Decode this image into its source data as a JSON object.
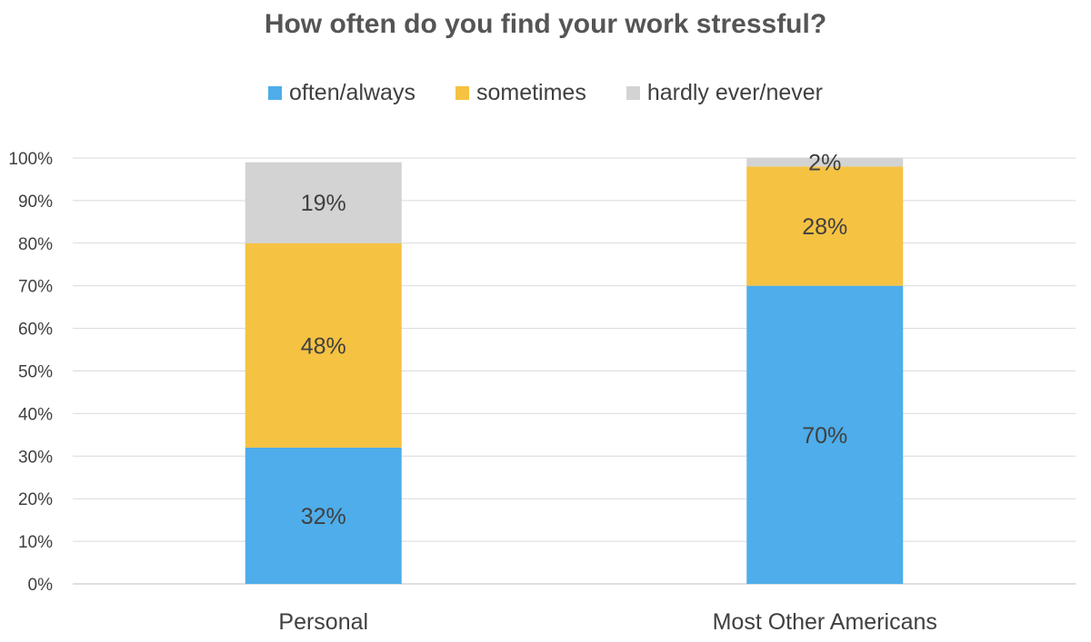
{
  "chart_data": {
    "type": "bar",
    "stacked": true,
    "title": "How often do you find your work stressful?",
    "xlabel": "",
    "ylabel": "",
    "categories": [
      "Personal",
      "Most Other Americans"
    ],
    "series": [
      {
        "name": "often/always",
        "values": [
          32,
          70
        ],
        "labels": [
          "32%",
          "70%"
        ],
        "color": "#4EADEA"
      },
      {
        "name": "sometimes",
        "values": [
          48,
          28
        ],
        "labels": [
          "48%",
          "28%"
        ],
        "color": "#F5C242"
      },
      {
        "name": "hardly ever/never",
        "values": [
          19,
          2
        ],
        "labels": [
          "19%",
          "2%"
        ],
        "color": "#D3D3D3"
      }
    ],
    "ylim": [
      0,
      100
    ],
    "yticks": [
      "0%",
      "10%",
      "20%",
      "30%",
      "40%",
      "50%",
      "60%",
      "70%",
      "80%",
      "90%",
      "100%"
    ],
    "grid": true,
    "legend_position": "top"
  }
}
